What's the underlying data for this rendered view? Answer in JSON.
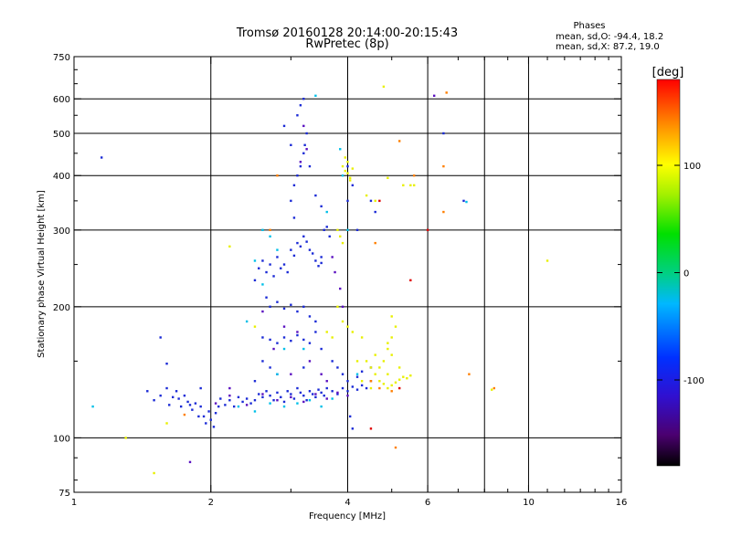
{
  "chart_data": {
    "type": "scatter",
    "title": "Tromsø 20160128 20:14:00-20:15:43",
    "subtitle": "RwPretec (8p)",
    "info": {
      "heading": "Phases",
      "line1": "mean, sd,O: -94.4, 18.2",
      "line2": "mean, sd,X:  87.2, 19.0"
    },
    "xlabel": "Frequency [MHz]",
    "ylabel": "Stationary phase Virtual Height [km]",
    "x_scale": "log2",
    "y_scale": "log",
    "xlim": [
      1,
      16
    ],
    "ylim": [
      75,
      750
    ],
    "x_ticks": [
      1,
      2,
      4,
      6,
      10,
      16
    ],
    "y_ticks": [
      75,
      100,
      200,
      300,
      400,
      500,
      600,
      750
    ],
    "x_grid": [
      2,
      4,
      6,
      8,
      10
    ],
    "y_grid": [
      100,
      200,
      300,
      400,
      500,
      600
    ],
    "grid": true,
    "colorbar": {
      "label": "[deg]",
      "range": [
        -180,
        180
      ],
      "ticks": [
        100,
        0,
        -100
      ],
      "tick_labels": [
        "100",
        "0",
        "-100"
      ]
    },
    "series": [
      {
        "color": "#1b2bd6",
        "values": [
          [
            1.15,
            440
          ],
          [
            1.45,
            128
          ],
          [
            1.5,
            122
          ],
          [
            1.55,
            125
          ],
          [
            1.6,
            130
          ],
          [
            1.62,
            119
          ],
          [
            1.65,
            124
          ],
          [
            1.68,
            128
          ],
          [
            1.7,
            123
          ],
          [
            1.72,
            118
          ],
          [
            1.75,
            125
          ],
          [
            1.78,
            121
          ],
          [
            1.8,
            119
          ],
          [
            1.82,
            116
          ],
          [
            1.85,
            120
          ],
          [
            1.88,
            112
          ],
          [
            1.9,
            118
          ],
          [
            1.93,
            112
          ],
          [
            1.95,
            108
          ],
          [
            1.98,
            115
          ],
          [
            2.0,
            110
          ],
          [
            2.03,
            106
          ],
          [
            2.05,
            114
          ],
          [
            2.08,
            118
          ],
          [
            2.1,
            123
          ],
          [
            2.15,
            119
          ],
          [
            2.2,
            122
          ],
          [
            2.25,
            118
          ],
          [
            2.3,
            124
          ],
          [
            2.35,
            121
          ],
          [
            2.4,
            123
          ],
          [
            2.45,
            120
          ],
          [
            2.5,
            122
          ],
          [
            2.55,
            126
          ],
          [
            2.6,
            124
          ],
          [
            2.65,
            128
          ],
          [
            2.7,
            125
          ],
          [
            2.75,
            122
          ],
          [
            2.8,
            127
          ],
          [
            2.85,
            124
          ],
          [
            2.9,
            121
          ],
          [
            2.95,
            128
          ],
          [
            3.0,
            126
          ],
          [
            3.05,
            123
          ],
          [
            3.1,
            130
          ],
          [
            3.15,
            127
          ],
          [
            3.2,
            125
          ],
          [
            3.25,
            122
          ],
          [
            3.3,
            128
          ],
          [
            3.35,
            126
          ],
          [
            3.4,
            124
          ],
          [
            3.45,
            129
          ],
          [
            3.5,
            127
          ],
          [
            3.55,
            125
          ],
          [
            3.6,
            130
          ],
          [
            3.7,
            128
          ],
          [
            3.8,
            126
          ],
          [
            3.9,
            130
          ],
          [
            4.0,
            128
          ],
          [
            4.1,
            131
          ],
          [
            4.2,
            129
          ],
          [
            4.3,
            132
          ],
          [
            4.4,
            130
          ],
          [
            1.55,
            170
          ],
          [
            1.6,
            148
          ],
          [
            2.5,
            135
          ],
          [
            2.6,
            150
          ],
          [
            2.7,
            145
          ],
          [
            2.8,
            140
          ],
          [
            3.2,
            145
          ],
          [
            2.5,
            230
          ],
          [
            2.55,
            245
          ],
          [
            2.6,
            255
          ],
          [
            2.65,
            240
          ],
          [
            2.7,
            250
          ],
          [
            2.75,
            235
          ],
          [
            2.8,
            260
          ],
          [
            2.85,
            245
          ],
          [
            2.9,
            250
          ],
          [
            2.95,
            240
          ],
          [
            3.0,
            270
          ],
          [
            3.05,
            262
          ],
          [
            3.1,
            280
          ],
          [
            3.15,
            275
          ],
          [
            3.2,
            290
          ],
          [
            3.25,
            282
          ],
          [
            3.3,
            270
          ],
          [
            3.35,
            265
          ],
          [
            3.4,
            255
          ],
          [
            3.45,
            248
          ],
          [
            3.5,
            252
          ],
          [
            3.55,
            300
          ],
          [
            3.6,
            305
          ],
          [
            3.65,
            290
          ],
          [
            3.5,
            260
          ],
          [
            2.65,
            210
          ],
          [
            2.7,
            200
          ],
          [
            2.8,
            205
          ],
          [
            2.9,
            198
          ],
          [
            3.0,
            202
          ],
          [
            3.1,
            195
          ],
          [
            3.2,
            200
          ],
          [
            3.3,
            190
          ],
          [
            3.4,
            185
          ],
          [
            2.6,
            170
          ],
          [
            2.7,
            168
          ],
          [
            2.8,
            165
          ],
          [
            2.9,
            170
          ],
          [
            3.0,
            167
          ],
          [
            3.1,
            172
          ],
          [
            3.2,
            168
          ],
          [
            3.3,
            165
          ],
          [
            3.4,
            175
          ],
          [
            3.5,
            160
          ],
          [
            3.0,
            350
          ],
          [
            3.05,
            380
          ],
          [
            3.1,
            400
          ],
          [
            3.15,
            420
          ],
          [
            3.2,
            450
          ],
          [
            3.22,
            470
          ],
          [
            3.25,
            500
          ],
          [
            3.15,
            580
          ],
          [
            3.2,
            600
          ],
          [
            3.1,
            550
          ],
          [
            3.05,
            320
          ],
          [
            3.3,
            420
          ],
          [
            3.4,
            360
          ],
          [
            3.5,
            340
          ],
          [
            2.9,
            520
          ],
          [
            3.0,
            470
          ],
          [
            4.0,
            420
          ],
          [
            4.1,
            380
          ],
          [
            4.0,
            350
          ],
          [
            4.2,
            300
          ],
          [
            4.5,
            350
          ],
          [
            4.6,
            330
          ],
          [
            4.1,
            105
          ],
          [
            4.05,
            112
          ],
          [
            3.7,
            150
          ],
          [
            3.8,
            145
          ],
          [
            3.9,
            140
          ],
          [
            4.0,
            135
          ],
          [
            4.2,
            138
          ],
          [
            4.3,
            142
          ],
          [
            4.5,
            145
          ],
          [
            1.9,
            130
          ],
          [
            6.5,
            500
          ],
          [
            7.2,
            350
          ]
        ]
      },
      {
        "color": "#5a10c0",
        "values": [
          [
            2.05,
            120
          ],
          [
            2.2,
            125
          ],
          [
            2.4,
            119
          ],
          [
            2.6,
            126
          ],
          [
            2.8,
            122
          ],
          [
            3.0,
            124
          ],
          [
            3.2,
            121
          ],
          [
            3.4,
            126
          ],
          [
            3.6,
            123
          ],
          [
            3.8,
            127
          ],
          [
            4.0,
            125
          ],
          [
            2.9,
            180
          ],
          [
            3.1,
            175
          ],
          [
            3.3,
            150
          ],
          [
            3.5,
            140
          ],
          [
            3.6,
            135
          ],
          [
            3.15,
            430
          ],
          [
            3.25,
            460
          ],
          [
            3.2,
            520
          ],
          [
            3.7,
            260
          ],
          [
            3.75,
            240
          ],
          [
            3.85,
            220
          ],
          [
            3.9,
            200
          ],
          [
            2.6,
            195
          ],
          [
            2.75,
            160
          ],
          [
            3.0,
            140
          ],
          [
            2.2,
            130
          ],
          [
            1.8,
            88
          ],
          [
            6.2,
            610
          ],
          [
            4.5,
            135
          ]
        ]
      },
      {
        "color": "#00c0e8",
        "values": [
          [
            2.3,
            118
          ],
          [
            2.5,
            115
          ],
          [
            2.7,
            120
          ],
          [
            2.9,
            118
          ],
          [
            3.1,
            120
          ],
          [
            3.3,
            122
          ],
          [
            3.5,
            118
          ],
          [
            3.7,
            123
          ],
          [
            2.7,
            290
          ],
          [
            2.8,
            270
          ],
          [
            2.6,
            300
          ],
          [
            3.9,
            400
          ],
          [
            3.85,
            460
          ],
          [
            4.0,
            300
          ],
          [
            2.8,
            140
          ],
          [
            2.9,
            160
          ],
          [
            3.2,
            160
          ],
          [
            4.2,
            140
          ],
          [
            1.1,
            118
          ],
          [
            3.4,
            610
          ],
          [
            2.4,
            185
          ],
          [
            2.6,
            225
          ],
          [
            2.5,
            255
          ],
          [
            3.6,
            330
          ],
          [
            7.3,
            348
          ]
        ]
      },
      {
        "color": "#e8f000",
        "values": [
          [
            3.9,
            420
          ],
          [
            3.95,
            410
          ],
          [
            4.0,
            405
          ],
          [
            4.05,
            395
          ],
          [
            4.1,
            415
          ],
          [
            4.0,
            430
          ],
          [
            3.95,
            440
          ],
          [
            4.05,
            390
          ],
          [
            3.8,
            300
          ],
          [
            3.85,
            290
          ],
          [
            3.9,
            280
          ],
          [
            3.8,
            200
          ],
          [
            3.9,
            185
          ],
          [
            4.0,
            180
          ],
          [
            4.1,
            175
          ],
          [
            4.3,
            170
          ],
          [
            4.4,
            150
          ],
          [
            4.5,
            145
          ],
          [
            4.6,
            140
          ],
          [
            4.7,
            135
          ],
          [
            4.8,
            133
          ],
          [
            4.9,
            130
          ],
          [
            5.0,
            132
          ],
          [
            5.1,
            134
          ],
          [
            5.2,
            136
          ],
          [
            5.3,
            138
          ],
          [
            5.4,
            137
          ],
          [
            5.5,
            139
          ],
          [
            4.8,
            150
          ],
          [
            4.9,
            160
          ],
          [
            5.0,
            170
          ],
          [
            5.1,
            180
          ],
          [
            5.0,
            190
          ],
          [
            4.9,
            165
          ],
          [
            5.0,
            155
          ],
          [
            5.2,
            145
          ],
          [
            4.7,
            145
          ],
          [
            5.3,
            380
          ],
          [
            5.5,
            380
          ],
          [
            5.6,
            380
          ],
          [
            4.8,
            640
          ],
          [
            4.4,
            360
          ],
          [
            4.6,
            350
          ],
          [
            3.7,
            170
          ],
          [
            3.6,
            175
          ],
          [
            4.9,
            140
          ],
          [
            4.6,
            155
          ],
          [
            4.2,
            150
          ],
          [
            4.3,
            135
          ],
          [
            4.5,
            130
          ],
          [
            2.2,
            275
          ],
          [
            11,
            255
          ],
          [
            1.5,
            83
          ],
          [
            1.3,
            100
          ],
          [
            1.6,
            108
          ],
          [
            2.5,
            180
          ],
          [
            8.3,
            129
          ],
          [
            4.9,
            395
          ]
        ]
      },
      {
        "color": "#ff7f00",
        "values": [
          [
            4.5,
            135
          ],
          [
            4.7,
            130
          ],
          [
            5.0,
            128
          ],
          [
            4.6,
            280
          ],
          [
            5.2,
            480
          ],
          [
            6.5,
            420
          ],
          [
            6.5,
            330
          ],
          [
            2.7,
            300
          ],
          [
            2.8,
            400
          ],
          [
            1.75,
            113
          ],
          [
            5.6,
            400
          ],
          [
            5.1,
            95
          ],
          [
            6.6,
            620
          ],
          [
            7.4,
            140
          ],
          [
            8.4,
            130
          ]
        ]
      },
      {
        "color": "#e00000",
        "values": [
          [
            5.5,
            230
          ],
          [
            4.5,
            105
          ],
          [
            5.2,
            130
          ],
          [
            4.7,
            350
          ],
          [
            6.0,
            300
          ]
        ]
      }
    ]
  }
}
